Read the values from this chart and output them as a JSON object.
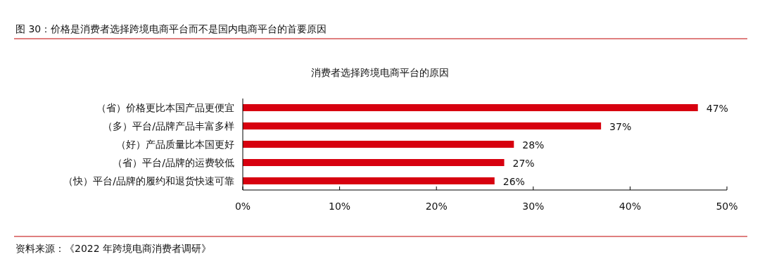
{
  "chart_data": {
    "type": "bar",
    "orientation": "horizontal",
    "title": "图 30：价格是消费者选择跨境电商平台而不是国内电商平台的首要原因",
    "subtitle": "消费者选择跨境电商平台的原因",
    "categories": [
      "（省）价格更比本国产品更便宜",
      "（多）平台/品牌产品丰富多样",
      "（好）产品质量比本国更好",
      "（省）平台/品牌的运费较低",
      "（快）平台/品牌的履约和退货快速可靠"
    ],
    "values": [
      47,
      37,
      28,
      27,
      26
    ],
    "value_labels": [
      "47%",
      "37%",
      "28%",
      "27%",
      "26%"
    ],
    "color": "#d7000f",
    "xlim": [
      0,
      50
    ],
    "xticks": [
      {
        "value": 0,
        "label": "0%"
      },
      {
        "value": 10,
        "label": "10%"
      },
      {
        "value": 20,
        "label": "20%"
      },
      {
        "value": 30,
        "label": "30%"
      },
      {
        "value": 40,
        "label": "40%"
      },
      {
        "value": 50,
        "label": "50%"
      }
    ],
    "annotations": [
      "资料来源：《2022 年跨境电商消费者调研》"
    ]
  }
}
